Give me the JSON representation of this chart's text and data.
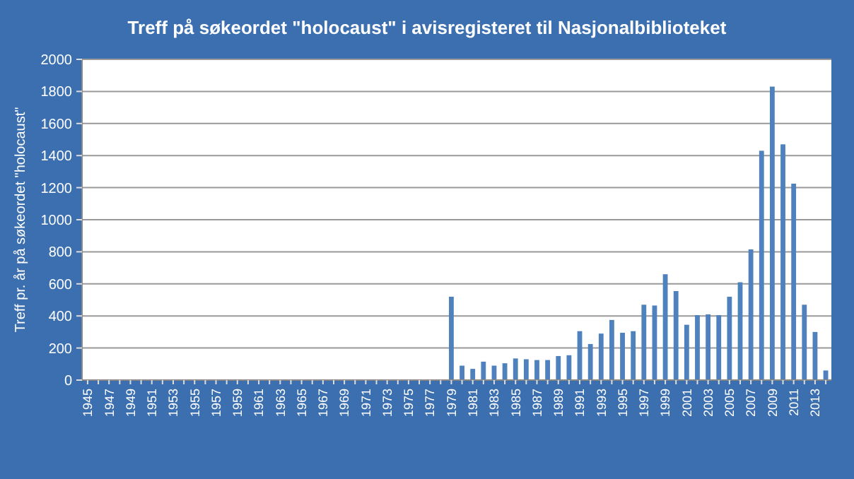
{
  "chart_data": {
    "type": "bar",
    "title": "Treff på søkeordet \"holocaust\" i avisregisteret til Nasjonalbiblioteket",
    "ylabel": "Treff pr. år på søkeordet \"holocaust\"",
    "categories": [
      "1945",
      null,
      "1947",
      null,
      "1949",
      null,
      "1951",
      null,
      "1953",
      null,
      "1955",
      null,
      "1957",
      null,
      "1959",
      null,
      "1961",
      null,
      "1963",
      null,
      "1965",
      null,
      "1967",
      null,
      "1969",
      null,
      "1971",
      null,
      "1973",
      null,
      "1975",
      null,
      "1977",
      null,
      "1979",
      null,
      "1981",
      null,
      "1983",
      null,
      "1985",
      null,
      "1987",
      null,
      "1989",
      null,
      "1991",
      null,
      "1993",
      null,
      "1995",
      null,
      "1997",
      null,
      "1999",
      null,
      "2001",
      null,
      "2003",
      null,
      "2005",
      null,
      "2007",
      null,
      "2009",
      null,
      "2011",
      null,
      "2013",
      null
    ],
    "values": [
      0,
      0,
      0,
      0,
      0,
      0,
      0,
      0,
      0,
      0,
      0,
      0,
      0,
      0,
      0,
      0,
      0,
      0,
      0,
      0,
      0,
      0,
      0,
      0,
      0,
      0,
      0,
      0,
      0,
      0,
      0,
      0,
      0,
      0,
      520,
      90,
      70,
      115,
      90,
      105,
      135,
      130,
      125,
      125,
      150,
      155,
      305,
      225,
      290,
      375,
      295,
      305,
      470,
      465,
      660,
      555,
      345,
      405,
      410,
      405,
      520,
      610,
      815,
      1430,
      1830,
      1470,
      1225,
      470,
      300,
      60
    ],
    "color": "#4f81bd",
    "ylim": [
      0,
      2000
    ],
    "yticks": [
      0,
      200,
      400,
      600,
      800,
      1000,
      1200,
      1400,
      1600,
      1800,
      2000
    ],
    "grid": "y"
  }
}
